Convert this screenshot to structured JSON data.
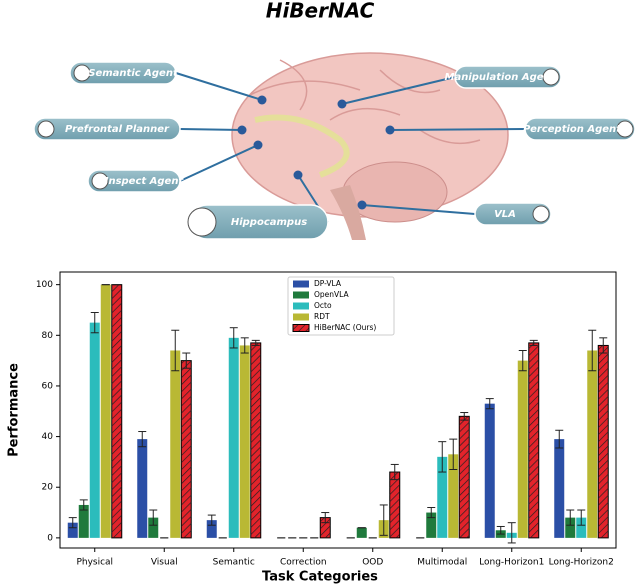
{
  "diagram": {
    "title": "HiBerNAC",
    "nodes": [
      {
        "label": "Semantic Agent"
      },
      {
        "label": "Prefrontal Planner"
      },
      {
        "label": "Inspect  Agent"
      },
      {
        "label": "Hippocampus"
      },
      {
        "label": "Manipulation Agent"
      },
      {
        "label": "Perception Agent"
      },
      {
        "label": "VLA"
      }
    ]
  },
  "chart_data": {
    "type": "bar",
    "xlabel": "Task Categories",
    "ylabel": "Performance",
    "categories": [
      "Physical",
      "Visual",
      "Semantic",
      "Correction",
      "OOD",
      "Multimodal",
      "Long-Horizon1",
      "Long-Horizon2"
    ],
    "series": [
      {
        "name": "DP-VLA",
        "color": "#2b4fa6",
        "values": [
          6,
          39,
          7,
          0,
          0,
          0,
          53,
          39
        ],
        "errors": [
          2,
          3,
          2,
          0,
          0,
          0,
          2,
          3.5
        ]
      },
      {
        "name": "OpenVLA",
        "color": "#1f7a3c",
        "values": [
          13,
          8,
          0,
          0,
          4,
          10,
          3,
          8
        ],
        "errors": [
          2,
          3,
          0,
          0,
          0,
          2,
          1.5,
          3
        ]
      },
      {
        "name": "Octo",
        "color": "#2bbcbc",
        "values": [
          85,
          0,
          79,
          0,
          0,
          32,
          2,
          8
        ],
        "errors": [
          4,
          0,
          4,
          0,
          0,
          6,
          4,
          3
        ]
      },
      {
        "name": "RDT",
        "color": "#b9b834",
        "values": [
          100,
          74,
          76,
          0,
          7,
          33,
          70,
          74
        ],
        "errors": [
          0,
          8,
          3,
          0,
          6,
          6,
          4,
          8
        ]
      },
      {
        "name": "HiBerNAC (Ours)",
        "color": "#e3232b",
        "hatch": true,
        "values": [
          100,
          70,
          77,
          8,
          26,
          48,
          77,
          76
        ],
        "errors": [
          0,
          3,
          1,
          2,
          3,
          1.5,
          1,
          3
        ]
      }
    ],
    "ylim": [
      -4,
      105
    ],
    "yticks": [
      0,
      20,
      40,
      60,
      80,
      100
    ],
    "legend": "top"
  }
}
